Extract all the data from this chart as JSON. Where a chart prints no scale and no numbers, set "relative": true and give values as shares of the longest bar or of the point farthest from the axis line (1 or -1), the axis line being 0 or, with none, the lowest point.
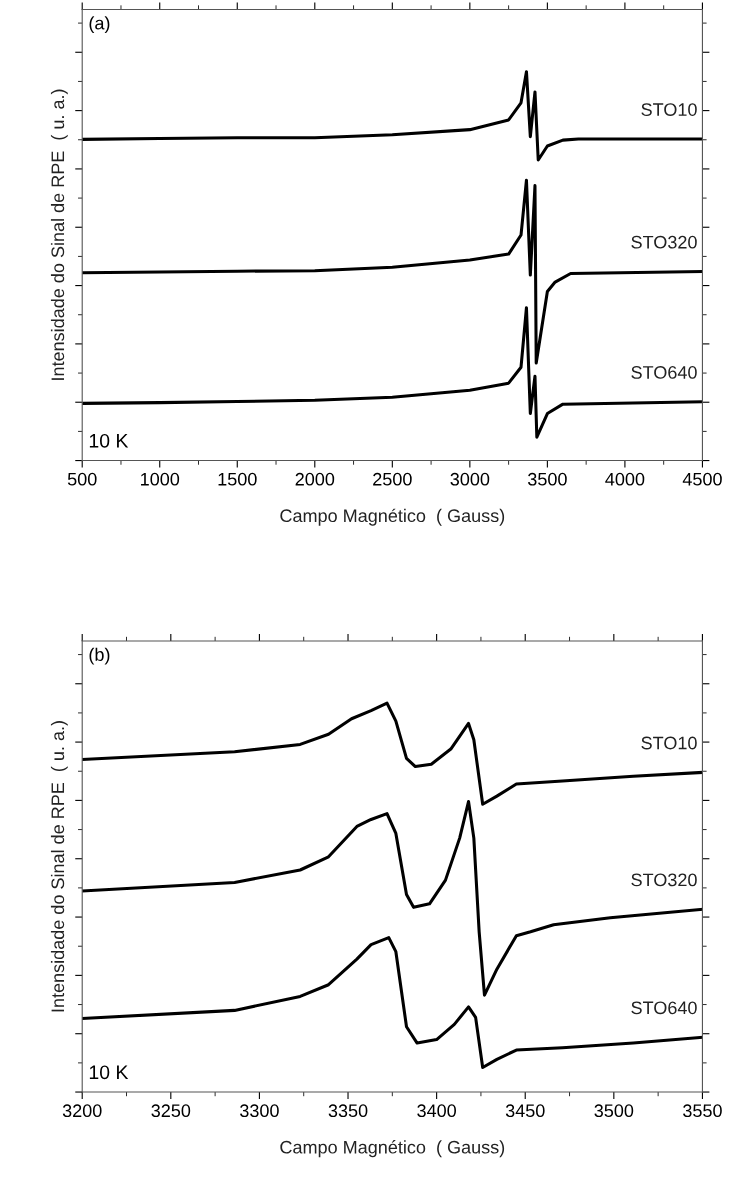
{
  "chart_data": [
    {
      "type": "line",
      "relative": true,
      "xlabel": "Campo Magnético  ( Gauss)",
      "ylabel": "Intensidade do Sinal de RPE  ( u. a.)",
      "annotations": [
        "(a)",
        "10 K"
      ],
      "xlim": [
        500,
        4500
      ],
      "xticks": [
        500,
        1000,
        1500,
        2000,
        2500,
        3000,
        3500,
        4000,
        4500
      ],
      "tick_labels": "x",
      "grid": false,
      "legend": "right",
      "series": [
        {
          "name": "STO10",
          "color": "#000000",
          "x": [
            500,
            1000,
            1500,
            2000,
            2500,
            3000,
            3250,
            3330,
            3365,
            3390,
            3420,
            3441,
            3500,
            3600,
            3700,
            4500
          ],
          "values": [
            0.826,
            0.828,
            0.83,
            0.83,
            0.838,
            0.851,
            0.876,
            0.92,
            1.0,
            0.833,
            0.948,
            0.773,
            0.809,
            0.824,
            0.827,
            0.827
          ]
        },
        {
          "name": "STO320",
          "color": "#000000",
          "x": [
            500,
            1000,
            1500,
            2000,
            2500,
            3000,
            3250,
            3330,
            3365,
            3390,
            3420,
            3428,
            3500,
            3550,
            3650,
            4500
          ],
          "values": [
            0.483,
            0.485,
            0.487,
            0.488,
            0.497,
            0.516,
            0.531,
            0.58,
            0.721,
            0.477,
            0.707,
            0.251,
            0.435,
            0.459,
            0.481,
            0.486
          ]
        },
        {
          "name": "STO640",
          "color": "#000000",
          "x": [
            500,
            1000,
            1500,
            2000,
            2500,
            3000,
            3250,
            3330,
            3365,
            3390,
            3420,
            3432,
            3500,
            3600,
            4500
          ],
          "values": [
            0.147,
            0.149,
            0.152,
            0.155,
            0.163,
            0.181,
            0.199,
            0.24,
            0.393,
            0.121,
            0.217,
            0.06,
            0.121,
            0.145,
            0.151
          ]
        }
      ]
    },
    {
      "type": "line",
      "relative": true,
      "xlabel": "Campo Magnético  ( Gauss)",
      "ylabel": "Intensidade do Sinal de RPE  ( u. a.)",
      "annotations": [
        "(b)",
        "10 K"
      ],
      "xlim": [
        3200,
        3550
      ],
      "xticks": [
        3200,
        3250,
        3300,
        3350,
        3400,
        3450,
        3500,
        3550
      ],
      "tick_labels": "x",
      "grid": false,
      "legend": "right",
      "series": [
        {
          "name": "STO10",
          "color": "#000000",
          "x": [
            3200,
            3286,
            3323,
            3339,
            3352,
            3363,
            3372,
            3377,
            3383,
            3388,
            3397,
            3408,
            3418,
            3421,
            3426,
            3434,
            3445,
            3471,
            3511,
            3550
          ],
          "values": [
            0.855,
            0.875,
            0.894,
            0.92,
            0.96,
            0.981,
            1.0,
            0.954,
            0.858,
            0.837,
            0.843,
            0.882,
            0.948,
            0.906,
            0.74,
            0.761,
            0.792,
            0.8,
            0.812,
            0.822
          ]
        },
        {
          "name": "STO320",
          "color": "#000000",
          "x": [
            3200,
            3286,
            3323,
            3339,
            3355,
            3363,
            3372,
            3377,
            3383,
            3387,
            3396,
            3405,
            3413,
            3418,
            3421,
            3424,
            3427,
            3434,
            3445,
            3453,
            3466,
            3498,
            3550
          ],
          "values": [
            0.517,
            0.539,
            0.571,
            0.605,
            0.683,
            0.701,
            0.716,
            0.665,
            0.508,
            0.475,
            0.484,
            0.545,
            0.653,
            0.747,
            0.653,
            0.412,
            0.249,
            0.316,
            0.402,
            0.412,
            0.43,
            0.448,
            0.47
          ]
        },
        {
          "name": "STO640",
          "color": "#000000",
          "x": [
            3200,
            3286,
            3323,
            3339,
            3355,
            3363,
            3373,
            3377,
            3383,
            3389,
            3400,
            3410,
            3418,
            3422,
            3426,
            3434,
            3445,
            3471,
            3511,
            3550
          ],
          "values": [
            0.189,
            0.21,
            0.246,
            0.276,
            0.342,
            0.379,
            0.397,
            0.361,
            0.168,
            0.126,
            0.135,
            0.174,
            0.219,
            0.192,
            0.063,
            0.084,
            0.108,
            0.114,
            0.126,
            0.141
          ]
        }
      ]
    }
  ]
}
